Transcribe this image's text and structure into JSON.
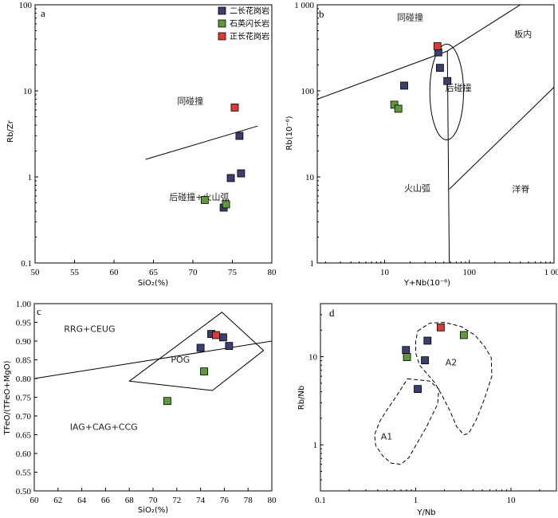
{
  "colors": {
    "二长花岗岩": "#3a3f6f",
    "石英闪长岩": "#5e9a3c",
    "正长花岗岩": "#d93b36"
  },
  "legend": [
    "二长花岗岩",
    "石英闪长岩",
    "正长花岗岩"
  ],
  "chart_data": [
    {
      "type": "scatter",
      "letter": "a",
      "xlabel": "SiO₂(%)",
      "ylabel": "Rb/Zr",
      "xlim": [
        50,
        80
      ],
      "ylim": [
        0.1,
        100
      ],
      "ylog": true,
      "xticks": [
        50,
        55,
        60,
        65,
        70,
        75,
        80
      ],
      "yticks": [
        {
          "v": 0.1,
          "t": "0.1"
        },
        {
          "v": 1,
          "t": "1"
        },
        {
          "v": 10,
          "t": "10"
        },
        {
          "v": 100,
          "t": "100"
        }
      ],
      "series": [
        {
          "name": "二长花岗岩",
          "points": [
            [
              75.9,
              3.0
            ],
            [
              76.1,
              1.1
            ],
            [
              74.8,
              0.97
            ],
            [
              73.9,
              0.44
            ]
          ]
        },
        {
          "name": "石英闪长岩",
          "points": [
            [
              71.5,
              0.54
            ],
            [
              74.2,
              0.48
            ]
          ]
        },
        {
          "name": "正长花岗岩",
          "points": [
            [
              75.3,
              6.4
            ]
          ]
        }
      ],
      "boundaries": [
        {
          "style": "solid",
          "points": [
            [
              64.0,
              1.6
            ],
            [
              78.2,
              3.9
            ]
          ]
        }
      ],
      "regions": [
        {
          "label": "同碰撞",
          "x": 68,
          "y": 7.0
        },
        {
          "label": "后碰撞+火山弧",
          "x": 67,
          "y": 0.54
        }
      ]
    },
    {
      "type": "scatter",
      "letter": "b",
      "xlabel": "Y+Nb(10⁻⁶)",
      "ylabel": "Rb(10⁻⁶)",
      "xlim": [
        1.6,
        1000
      ],
      "ylim": [
        1,
        1000
      ],
      "xlog": true,
      "ylog": true,
      "xticks": [
        {
          "v": 10,
          "t": "10"
        },
        {
          "v": 100,
          "t": "100"
        },
        {
          "v": 1000,
          "t": "1 000"
        }
      ],
      "yticks": [
        {
          "v": 1,
          "t": "1"
        },
        {
          "v": 10,
          "t": "10"
        },
        {
          "v": 100,
          "t": "100"
        },
        {
          "v": 1000,
          "t": "1 000"
        }
      ],
      "series": [
        {
          "name": "二长花岗岩",
          "points": [
            [
              43,
              280
            ],
            [
              45,
              185
            ],
            [
              55,
              130
            ],
            [
              17,
              115
            ]
          ]
        },
        {
          "name": "石英闪长岩",
          "points": [
            [
              13,
              69
            ],
            [
              14.5,
              62
            ]
          ]
        },
        {
          "name": "正长花岗岩",
          "points": [
            [
              42,
              330
            ]
          ]
        }
      ],
      "boundaries": [
        {
          "style": "solid",
          "points": [
            [
              1.6,
              80
            ],
            [
              55,
              290
            ],
            [
              400,
              1000
            ]
          ]
        },
        {
          "style": "solid",
          "points": [
            [
              55,
              290
            ],
            [
              58,
              1
            ]
          ]
        },
        {
          "style": "solid",
          "points": [
            [
              58,
              7.2
            ],
            [
              1000,
              110
            ]
          ]
        },
        {
          "style": "ellipse",
          "center": [
            54,
            97
          ],
          "rx": 1.58,
          "ry": 3.6
        }
      ],
      "regions": [
        {
          "label": "同碰撞",
          "x": 14,
          "y": 660
        },
        {
          "label": "板内",
          "x": 340,
          "y": 420
        },
        {
          "label": "后碰撞",
          "x": 52,
          "y": 100
        },
        {
          "label": "火山弧",
          "x": 17,
          "y": 6.8
        },
        {
          "label": "洋脊",
          "x": 320,
          "y": 6.7
        }
      ]
    },
    {
      "type": "scatter",
      "letter": "c",
      "xlabel": "SiO₂(%)",
      "ylabel": "TFeO/(TFeO+MgO)",
      "xlim": [
        60,
        80
      ],
      "ylim": [
        0.5,
        1.0
      ],
      "xticks": [
        60,
        62,
        64,
        66,
        68,
        70,
        72,
        74,
        76,
        78,
        80
      ],
      "yticks": [
        0.5,
        0.55,
        0.6,
        0.65,
        0.7,
        0.75,
        0.8,
        0.85,
        0.9,
        0.95,
        1.0
      ],
      "series": [
        {
          "name": "二长花岗岩",
          "points": [
            [
              74.9,
              0.919
            ],
            [
              75.9,
              0.91
            ],
            [
              76.4,
              0.887
            ],
            [
              74.0,
              0.882
            ]
          ]
        },
        {
          "name": "石英闪长岩",
          "points": [
            [
              74.3,
              0.819
            ],
            [
              71.2,
              0.74
            ]
          ]
        },
        {
          "name": "正长花岗岩",
          "points": [
            [
              75.3,
              0.916
            ]
          ]
        }
      ],
      "boundaries": [
        {
          "style": "solid",
          "points": [
            [
              60,
              0.8
            ],
            [
              80,
              0.9
            ]
          ]
        },
        {
          "style": "closed",
          "points": [
            [
              75.8,
              0.977
            ],
            [
              79.3,
              0.875
            ],
            [
              75.0,
              0.768
            ],
            [
              68.0,
              0.793
            ]
          ]
        }
      ],
      "regions": [
        {
          "label": "RRG+CEUG",
          "x": 62.5,
          "y": 0.925
        },
        {
          "label": "POG",
          "x": 71.5,
          "y": 0.843
        },
        {
          "label": "IAG+CAG+CCG",
          "x": 63.0,
          "y": 0.663
        }
      ]
    },
    {
      "type": "scatter",
      "letter": "d",
      "xlabel": "Y/Nb",
      "ylabel": "Rb/Nb",
      "xlim": [
        0.1,
        30
      ],
      "ylim": [
        0.3,
        40
      ],
      "xlog": true,
      "ylog": true,
      "xticks": [
        {
          "v": 0.1,
          "t": "0.1"
        },
        {
          "v": 1,
          "t": "1"
        },
        {
          "v": 10,
          "t": "10"
        }
      ],
      "yticks": [
        {
          "v": 1,
          "t": "1"
        },
        {
          "v": 10,
          "t": "10"
        }
      ],
      "series": [
        {
          "name": "二长花岗岩",
          "points": [
            [
              1.33,
              15.2
            ],
            [
              0.79,
              11.9
            ],
            [
              1.25,
              9.1
            ],
            [
              1.05,
              4.3
            ]
          ]
        },
        {
          "name": "石英闪长岩",
          "points": [
            [
              3.2,
              17.6
            ],
            [
              0.81,
              9.9
            ]
          ]
        },
        {
          "name": "正长花岗岩",
          "points": [
            [
              1.83,
              21.5
            ]
          ]
        }
      ],
      "boundaries": [
        {
          "style": "dashed-closed",
          "points": [
            [
              1.05,
              19.5
            ],
            [
              1.4,
              24.0
            ],
            [
              2.0,
              24.5
            ],
            [
              3.0,
              22.0
            ],
            [
              4.2,
              17.5
            ],
            [
              5.3,
              13.0
            ],
            [
              6.2,
              9.8
            ],
            [
              6.3,
              6.0
            ],
            [
              5.2,
              3.2
            ],
            [
              4.3,
              1.9
            ],
            [
              3.6,
              1.35
            ],
            [
              3.2,
              1.3
            ],
            [
              2.7,
              1.6
            ],
            [
              2.3,
              2.4
            ],
            [
              1.95,
              3.4
            ],
            [
              1.6,
              5.0
            ],
            [
              1.3,
              6.5
            ],
            [
              1.1,
              8.0
            ],
            [
              1.0,
              11.0
            ],
            [
              1.0,
              15.0
            ]
          ]
        },
        {
          "style": "dashed-closed",
          "points": [
            [
              0.82,
              5.6
            ],
            [
              1.4,
              5.3
            ],
            [
              1.75,
              4.3
            ],
            [
              1.7,
              2.9
            ],
            [
              1.3,
              1.6
            ],
            [
              1.0,
              0.98
            ],
            [
              0.85,
              0.72
            ],
            [
              0.7,
              0.6
            ],
            [
              0.55,
              0.62
            ],
            [
              0.45,
              0.75
            ],
            [
              0.38,
              0.98
            ],
            [
              0.37,
              1.3
            ],
            [
              0.42,
              1.85
            ],
            [
              0.5,
              2.5
            ],
            [
              0.62,
              3.5
            ]
          ]
        }
      ],
      "regions": [
        {
          "label": "A1",
          "x": 0.43,
          "y": 1.15
        },
        {
          "label": "A2",
          "x": 2.05,
          "y": 8.0
        }
      ]
    }
  ]
}
